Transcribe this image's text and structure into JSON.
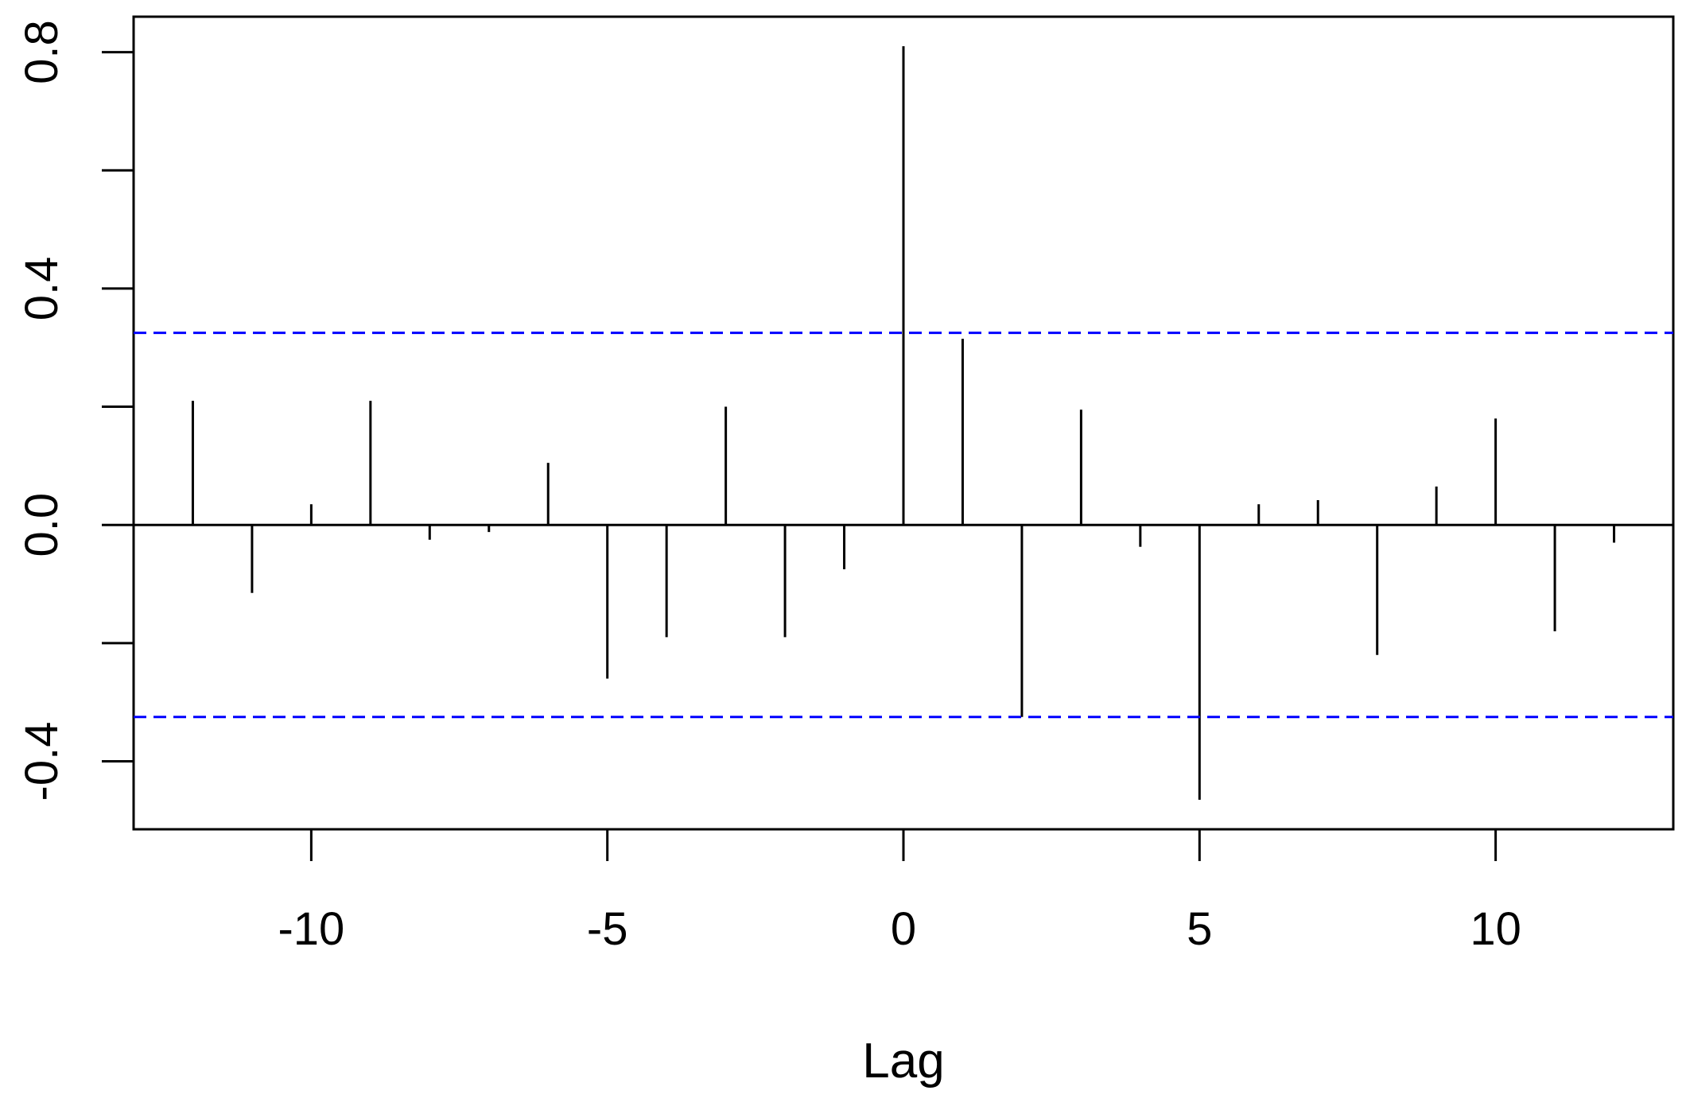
{
  "chart_data": {
    "type": "bar",
    "xlabel": "Lag",
    "ylabel": "",
    "xlim": [
      -13,
      13
    ],
    "ylim": [
      -0.515,
      0.86
    ],
    "x_ticks": [
      -10,
      -5,
      0,
      5,
      10
    ],
    "x_tick_labels": [
      "-10",
      "-5",
      "0",
      "5",
      "10"
    ],
    "y_ticks": [
      -0.4,
      -0.2,
      0.0,
      0.2,
      0.4,
      0.6,
      0.8
    ],
    "y_tick_labels": [
      "-0.4",
      "",
      "0.0",
      "",
      "0.4",
      "",
      "0.8"
    ],
    "x": [
      -12,
      -11,
      -10,
      -9,
      -8,
      -7,
      -6,
      -5,
      -4,
      -3,
      -2,
      -1,
      0,
      1,
      2,
      3,
      4,
      5,
      6,
      7,
      8,
      9,
      10,
      11,
      12
    ],
    "values": [
      0.21,
      -0.115,
      0.035,
      0.21,
      -0.025,
      -0.012,
      0.105,
      -0.26,
      -0.19,
      0.2,
      -0.19,
      -0.075,
      0.81,
      0.315,
      -0.325,
      0.195,
      -0.037,
      -0.465,
      0.035,
      0.042,
      -0.22,
      0.065,
      0.18,
      -0.18,
      -0.03
    ],
    "confidence_band": [
      0.325,
      -0.325
    ],
    "band_color": "#0000ff",
    "bar_color": "#000000",
    "grid": false,
    "legend": "none"
  }
}
